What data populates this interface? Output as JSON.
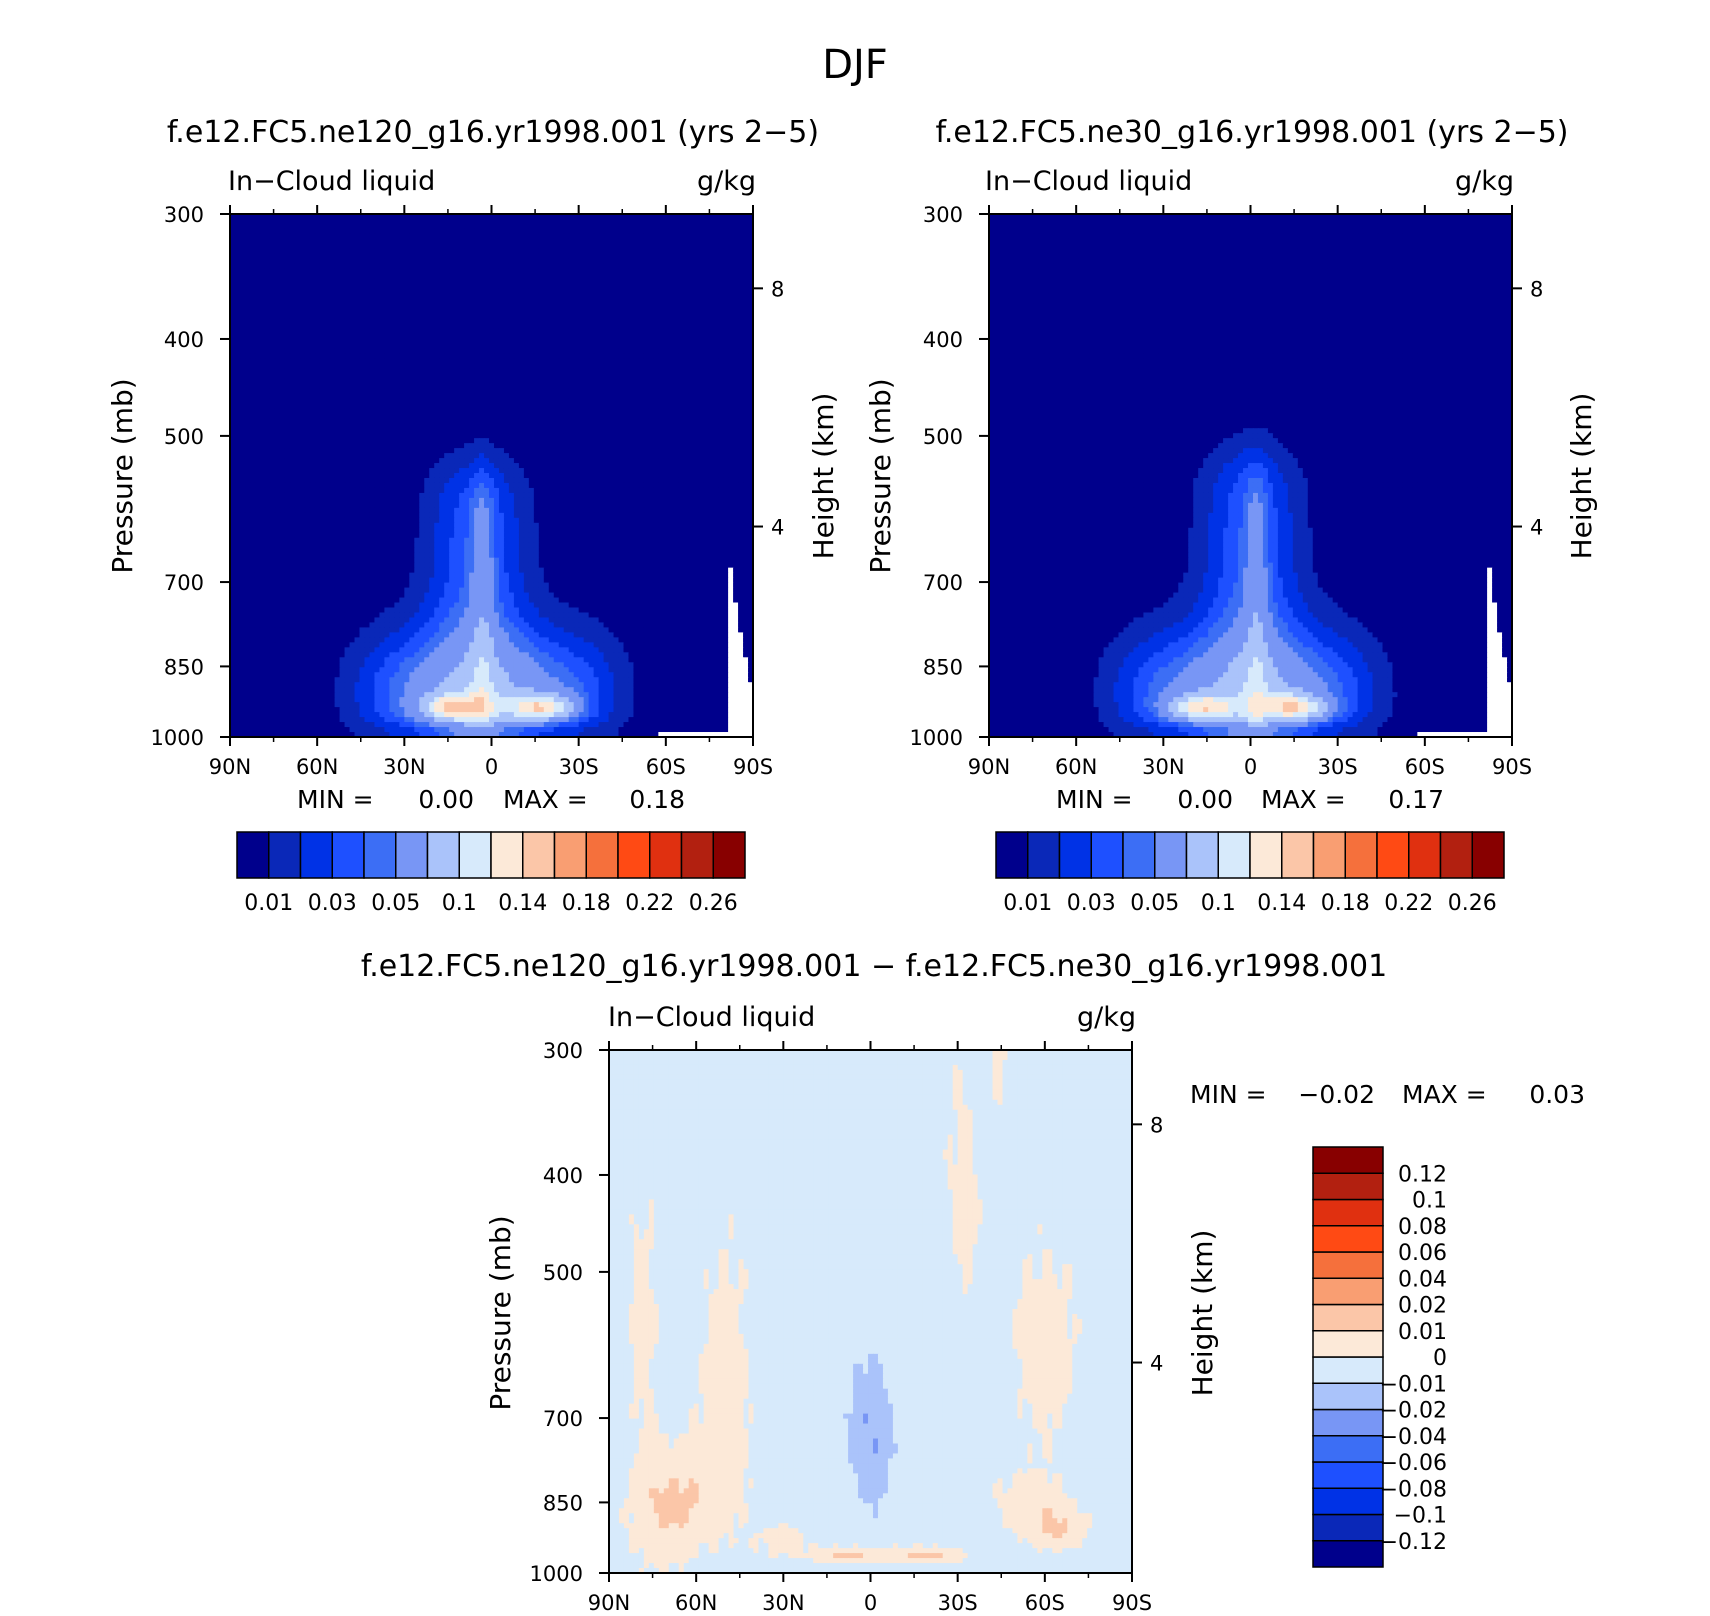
{
  "figure": {
    "title": "DJF"
  },
  "colors": {
    "abs_palette": [
      "#00008c",
      "#0a28b8",
      "#0032e6",
      "#1e50ff",
      "#3c6ef5",
      "#7896f5",
      "#aac3fa",
      "#d7eafb",
      "#fce9d8",
      "#fbc6a8",
      "#f99e72",
      "#f5703c",
      "#ff4a14",
      "#e03010",
      "#b22010",
      "#880000"
    ],
    "diff_palette": [
      "#00008c",
      "#0a28b8",
      "#0032e6",
      "#1e50ff",
      "#3c6ef5",
      "#7896f5",
      "#aac3fa",
      "#d7eafb",
      "#fce9d8",
      "#fbc6a8",
      "#f99e72",
      "#f5703c",
      "#ff4a14",
      "#e03010",
      "#b22010",
      "#880000"
    ]
  },
  "chart_data": [
    {
      "type": "heatmap",
      "title": "f.e12.FC5.ne120_g16.yr1998.001 (yrs 2−5)",
      "left_string": "In−Cloud liquid",
      "right_string": "g/kg",
      "ylabel": "Pressure (mb)",
      "ylabel_right": "Height (km)",
      "x_ticks": [
        "90N",
        "60N",
        "30N",
        "0",
        "30S",
        "60S",
        "90S"
      ],
      "x_range": [
        90,
        -90
      ],
      "y_ticks": [
        300,
        400,
        500,
        700,
        850,
        1000
      ],
      "y_range": [
        300,
        1000
      ],
      "height_ticks": [
        {
          "km": 8,
          "p": 356
        },
        {
          "km": 4,
          "p": 616
        }
      ],
      "stats": {
        "min_label": "MIN =",
        "min": "0.00",
        "max_label": "MAX =",
        "max": "0.18"
      },
      "colorbar": {
        "labels": [
          "0.01",
          "0.03",
          "0.05",
          "0.1",
          "0.14",
          "0.18",
          "0.22",
          "0.26"
        ]
      },
      "field": {
        "plume_top_p": 535,
        "plume_lat": 5,
        "hotspots": [
          {
            "lat": 13,
            "p": 935,
            "value": 0.15
          },
          {
            "lat": -17,
            "p": 935,
            "value": 0.16
          }
        ]
      }
    },
    {
      "type": "heatmap",
      "title": "f.e12.FC5.ne30_g16.yr1998.001 (yrs 2−5)",
      "left_string": "In−Cloud liquid",
      "right_string": "g/kg",
      "ylabel": "Pressure (mb)",
      "ylabel_right": "Height (km)",
      "x_ticks": [
        "90N",
        "60N",
        "30N",
        "0",
        "30S",
        "60S",
        "90S"
      ],
      "x_range": [
        90,
        -90
      ],
      "y_ticks": [
        300,
        400,
        500,
        700,
        850,
        1000
      ],
      "y_range": [
        300,
        1000
      ],
      "height_ticks": [
        {
          "km": 8,
          "p": 356
        },
        {
          "km": 4,
          "p": 616
        }
      ],
      "stats": {
        "min_label": "MIN =",
        "min": "0.00",
        "max_label": "MAX =",
        "max": "0.17"
      },
      "colorbar": {
        "labels": [
          "0.01",
          "0.03",
          "0.05",
          "0.1",
          "0.14",
          "0.18",
          "0.22",
          "0.26"
        ]
      },
      "field": {
        "plume_top_p": 520,
        "plume_lat": 0,
        "hotspots": [
          {
            "lat": 17,
            "p": 935,
            "value": 0.15
          },
          {
            "lat": -15,
            "p": 935,
            "value": 0.15
          }
        ]
      }
    },
    {
      "type": "heatmap",
      "title": "f.e12.FC5.ne120_g16.yr1998.001 − f.e12.FC5.ne30_g16.yr1998.001",
      "left_string": "In−Cloud liquid",
      "right_string": "g/kg",
      "ylabel": "Pressure (mb)",
      "ylabel_right": "Height (km)",
      "x_ticks": [
        "90N",
        "60N",
        "30N",
        "0",
        "30S",
        "60S",
        "90S"
      ],
      "x_range": [
        90,
        -90
      ],
      "y_ticks": [
        300,
        400,
        500,
        700,
        850,
        1000
      ],
      "y_range": [
        300,
        1000
      ],
      "height_ticks": [
        {
          "km": 8,
          "p": 356
        },
        {
          "km": 4,
          "p": 616
        }
      ],
      "stats": {
        "min_label": "MIN =",
        "min": "−0.02",
        "max_label": "MAX =",
        "max": "0.03"
      },
      "colorbar": {
        "labels": [
          "0.12",
          "0.1",
          "0.08",
          "0.06",
          "0.04",
          "0.02",
          "0.01",
          "0",
          "−0.01",
          "−0.02",
          "−0.04",
          "−0.06",
          "−0.08",
          "−0.1",
          "−0.12"
        ]
      }
    }
  ]
}
